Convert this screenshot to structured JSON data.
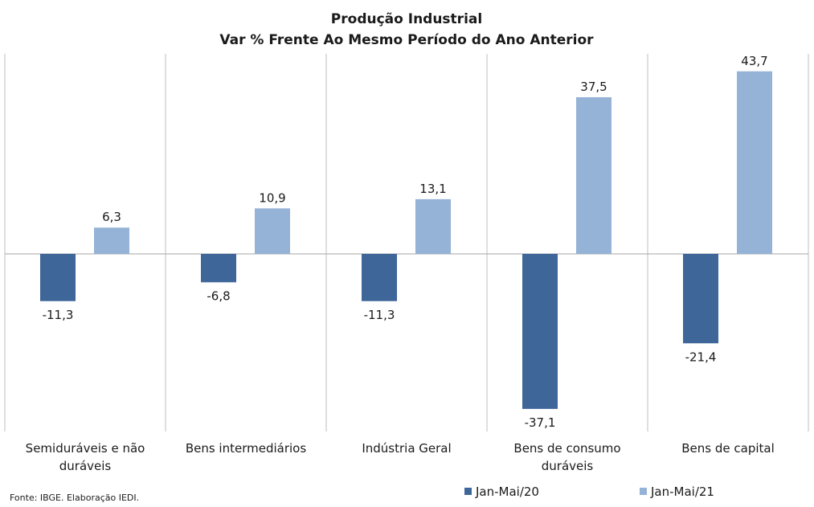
{
  "chart_data": {
    "type": "bar",
    "title_lines": [
      "Produção  Industrial",
      "Var % Frente Ao Mesmo Período do Ano Anterior"
    ],
    "categories": [
      [
        "Semiduráveis e não",
        "duráveis"
      ],
      [
        "Bens intermediários"
      ],
      [
        "Indústria Geral"
      ],
      [
        "Bens de consumo",
        "duráveis"
      ],
      [
        "Bens de capital"
      ]
    ],
    "series": [
      {
        "name": "Jan-Mai/20",
        "color": "#3e6699",
        "values": [
          -11.3,
          -6.8,
          -11.3,
          -37.1,
          -21.4
        ],
        "labels": [
          "-11,3",
          "-6,8",
          "-11,3",
          "-37,1",
          "-21,4"
        ]
      },
      {
        "name": "Jan-Mai/21",
        "color": "#95b3d7",
        "values": [
          6.3,
          10.9,
          13.1,
          37.5,
          43.7
        ],
        "labels": [
          "6,3",
          "10,9",
          "13,1",
          "37,5",
          "43,7"
        ]
      }
    ],
    "xlabel": "",
    "ylabel": "",
    "ylim": [
      -42,
      48
    ],
    "grid": "vertical category separators",
    "legend_position": "bottom-right",
    "source": "Fonte: IBGE. Elaboração IEDI.",
    "colors": {
      "text": "#1a1a1a",
      "axis": "#a6a6a6",
      "separator": "#bfbfbf"
    }
  }
}
